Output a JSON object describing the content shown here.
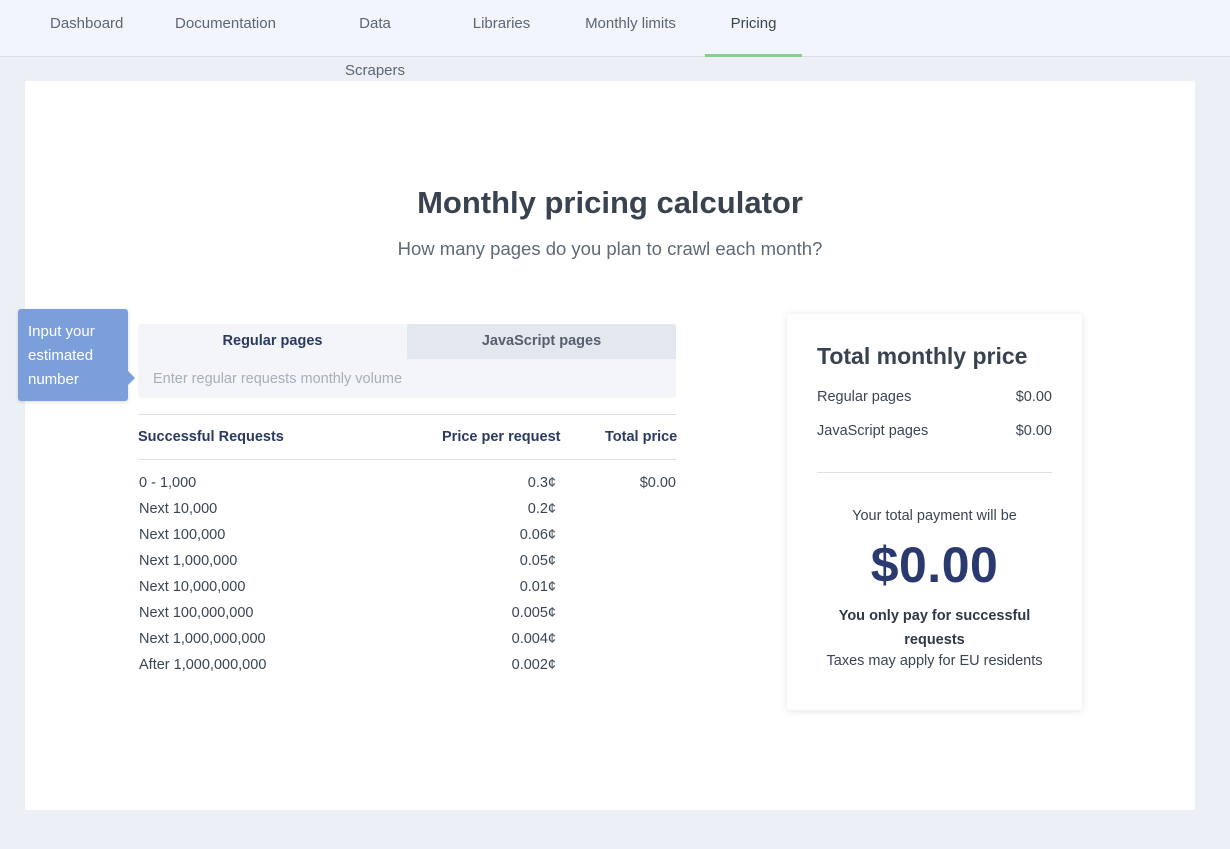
{
  "nav": {
    "tabs": [
      {
        "label": "Dashboard"
      },
      {
        "label": "Documentation"
      },
      {
        "label": "Data Scrapers"
      },
      {
        "label": "Libraries"
      },
      {
        "label": "Monthly limits"
      },
      {
        "label": "Pricing"
      }
    ],
    "active_tab": "Pricing",
    "active_color": "#86d18a"
  },
  "calculator": {
    "title": "Monthly pricing calculator",
    "subtitle": "How many pages do you plan to crawl each month?",
    "tooltip": "Input your estimated number",
    "tabs": [
      {
        "label": "Regular pages"
      },
      {
        "label": "JavaScript pages"
      }
    ],
    "input_placeholder": "Enter regular requests monthly volume",
    "table": {
      "headers": [
        "Successful Requests",
        "Price per request",
        "Total price"
      ],
      "rows": [
        {
          "range": "0 - 1,000",
          "price": "0.3¢",
          "total": "$0.00"
        },
        {
          "range": "Next 10,000",
          "price": "0.2¢",
          "total": ""
        },
        {
          "range": "Next 100,000",
          "price": "0.06¢",
          "total": ""
        },
        {
          "range": "Next 1,000,000",
          "price": "0.05¢",
          "total": ""
        },
        {
          "range": "Next 10,000,000",
          "price": "0.01¢",
          "total": ""
        },
        {
          "range": "Next 100,000,000",
          "price": "0.005¢",
          "total": ""
        },
        {
          "range": "Next 1,000,000,000",
          "price": "0.004¢",
          "total": ""
        },
        {
          "range": "After 1,000,000,000",
          "price": "0.002¢",
          "total": ""
        }
      ]
    }
  },
  "summary": {
    "title": "Total monthly price",
    "lines": [
      {
        "label": "Regular pages",
        "value": "$0.00"
      },
      {
        "label": "JavaScript pages",
        "value": "$0.00"
      }
    ],
    "payment_label": "Your total payment will be",
    "payment_amount": "$0.00",
    "note": "You only pay for successful requests",
    "tax_note": "Taxes may apply for EU residents"
  }
}
